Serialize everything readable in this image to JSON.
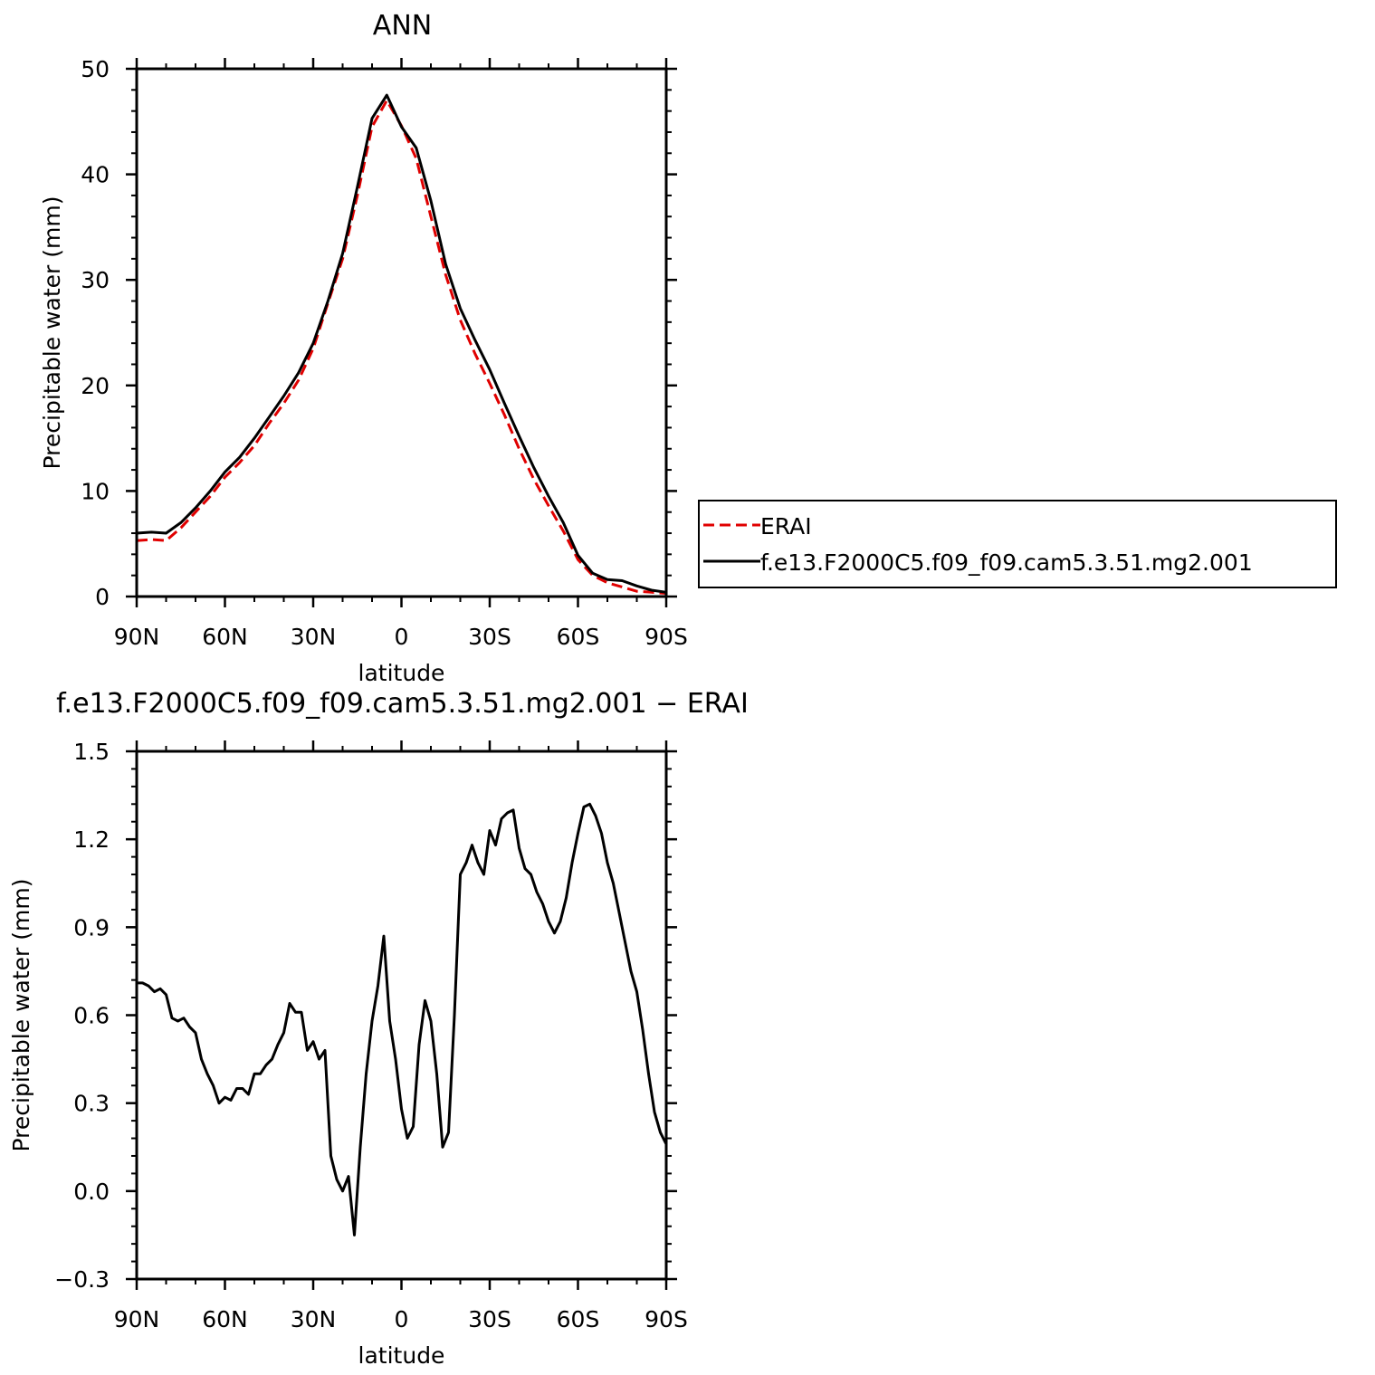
{
  "chart_data": [
    {
      "type": "line",
      "title": "ANN",
      "xlabel": "latitude",
      "ylabel": "Precipitable water (mm)",
      "xlim": [
        90,
        -90
      ],
      "ylim": [
        0,
        50
      ],
      "xticks": [
        90,
        60,
        30,
        0,
        -30,
        -60,
        -90
      ],
      "xtick_labels": [
        "90N",
        "60N",
        "30N",
        "0",
        "30S",
        "60S",
        "90S"
      ],
      "yticks": [
        0,
        10,
        20,
        30,
        40,
        50
      ],
      "ytick_labels": [
        "0",
        "10",
        "20",
        "30",
        "40",
        "50"
      ],
      "grid": false,
      "legend_position": "right",
      "series": [
        {
          "name": "ERAI",
          "color": "#e00000",
          "dash": "dashed",
          "x": [
            90,
            85,
            80,
            75,
            70,
            65,
            60,
            55,
            50,
            45,
            40,
            35,
            30,
            25,
            20,
            15,
            10,
            5,
            0,
            -5,
            -10,
            -15,
            -20,
            -25,
            -30,
            -35,
            -40,
            -45,
            -50,
            -55,
            -60,
            -65,
            -70,
            -75,
            -80,
            -85,
            -90
          ],
          "y": [
            5.3,
            5.4,
            5.3,
            6.5,
            8.0,
            9.5,
            11.3,
            12.7,
            14.3,
            16.4,
            18.3,
            20.5,
            23.5,
            27.8,
            32.0,
            38.0,
            44.5,
            47.0,
            44.6,
            41.5,
            36.0,
            30.5,
            26.2,
            23.0,
            20.2,
            17.2,
            14.0,
            11.1,
            8.6,
            6.2,
            3.5,
            2.0,
            1.3,
            0.9,
            0.5,
            0.4,
            0.3
          ]
        },
        {
          "name": "f.e13.F2000C5.f09_f09.cam5.3.51.mg2.001",
          "color": "#000000",
          "dash": "solid",
          "x": [
            90,
            85,
            80,
            75,
            70,
            65,
            60,
            55,
            50,
            45,
            40,
            35,
            30,
            25,
            20,
            15,
            10,
            5,
            0,
            -5,
            -10,
            -15,
            -20,
            -25,
            -30,
            -35,
            -40,
            -45,
            -50,
            -55,
            -60,
            -65,
            -70,
            -75,
            -80,
            -85,
            -90
          ],
          "y": [
            6.0,
            6.1,
            6.0,
            7.0,
            8.4,
            10.0,
            11.8,
            13.2,
            15.0,
            17.0,
            19.0,
            21.2,
            24.0,
            28.0,
            32.5,
            38.8,
            45.3,
            47.5,
            44.5,
            42.5,
            37.5,
            31.5,
            27.3,
            24.3,
            21.5,
            18.3,
            15.2,
            12.2,
            9.5,
            7.0,
            3.9,
            2.2,
            1.6,
            1.5,
            1.0,
            0.6,
            0.4
          ]
        }
      ]
    },
    {
      "type": "line",
      "title": "f.e13.F2000C5.f09_f09.cam5.3.51.mg2.001  −  ERAI",
      "xlabel": "latitude",
      "ylabel": "Precipitable water (mm)",
      "xlim": [
        90,
        -90
      ],
      "ylim": [
        -0.3,
        1.5
      ],
      "xticks": [
        90,
        60,
        30,
        0,
        -30,
        -60,
        -90
      ],
      "xtick_labels": [
        "90N",
        "60N",
        "30N",
        "0",
        "30S",
        "60S",
        "90S"
      ],
      "yticks": [
        -0.3,
        0,
        0.3,
        0.6,
        0.9,
        1.2,
        1.5
      ],
      "ytick_labels": [
        "−0.3",
        "0.0",
        "0.3",
        "0.6",
        "0.9",
        "1.2",
        "1.5"
      ],
      "grid": false,
      "series": [
        {
          "color": "#000000",
          "dash": "solid",
          "x": [
            90,
            88,
            86,
            84,
            82,
            80,
            78,
            76,
            74,
            72,
            70,
            68,
            66,
            64,
            62,
            60,
            58,
            56,
            54,
            52,
            50,
            48,
            46,
            44,
            42,
            40,
            38,
            36,
            34,
            32,
            30,
            28,
            26,
            24,
            22,
            20,
            18,
            16,
            14,
            12,
            10,
            8,
            6,
            4,
            2,
            0,
            -2,
            -4,
            -6,
            -8,
            -10,
            -12,
            -14,
            -16,
            -18,
            -20,
            -22,
            -24,
            -26,
            -28,
            -30,
            -32,
            -34,
            -36,
            -38,
            -40,
            -42,
            -44,
            -46,
            -48,
            -50,
            -52,
            -54,
            -56,
            -58,
            -60,
            -62,
            -64,
            -66,
            -68,
            -70,
            -72,
            -74,
            -76,
            -78,
            -80,
            -82,
            -84,
            -86,
            -88,
            -90
          ],
          "y": [
            0.71,
            0.71,
            0.7,
            0.68,
            0.69,
            0.67,
            0.59,
            0.58,
            0.59,
            0.56,
            0.54,
            0.45,
            0.4,
            0.36,
            0.3,
            0.32,
            0.31,
            0.35,
            0.35,
            0.33,
            0.4,
            0.4,
            0.43,
            0.45,
            0.5,
            0.54,
            0.64,
            0.61,
            0.61,
            0.48,
            0.51,
            0.45,
            0.48,
            0.12,
            0.04,
            0.0,
            0.05,
            -0.15,
            0.15,
            0.4,
            0.58,
            0.7,
            0.87,
            0.58,
            0.45,
            0.28,
            0.18,
            0.22,
            0.5,
            0.65,
            0.58,
            0.4,
            0.15,
            0.2,
            0.6,
            1.08,
            1.12,
            1.18,
            1.12,
            1.08,
            1.23,
            1.18,
            1.27,
            1.29,
            1.3,
            1.17,
            1.1,
            1.08,
            1.02,
            0.98,
            0.92,
            0.88,
            0.92,
            1.0,
            1.12,
            1.22,
            1.31,
            1.32,
            1.28,
            1.22,
            1.12,
            1.05,
            0.95,
            0.85,
            0.75,
            0.68,
            0.55,
            0.4,
            0.27,
            0.2,
            0.16
          ]
        }
      ]
    }
  ]
}
